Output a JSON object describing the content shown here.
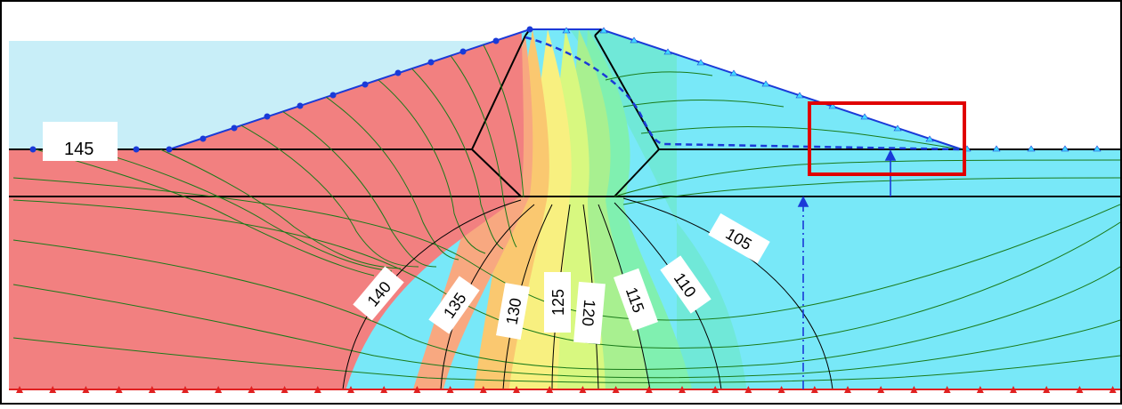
{
  "diagram": {
    "head_label_upstream": "145",
    "contour_labels": [
      {
        "text": "140",
        "angle": -50
      },
      {
        "text": "135",
        "angle": -55
      },
      {
        "text": "130",
        "angle": -80
      },
      {
        "text": "125",
        "angle": -90
      },
      {
        "text": "120",
        "angle": 95
      },
      {
        "text": "115",
        "angle": 70
      },
      {
        "text": "110",
        "angle": 55
      },
      {
        "text": "105",
        "angle": 30
      }
    ],
    "highlight_box": "toe drain region",
    "colors": {
      "upstream_water": "#c8eef8",
      "zone_145": "#f28080",
      "zone_135": "#f8a880",
      "zone_130": "#fac870",
      "zone_125": "#f8f080",
      "zone_120": "#d8f880",
      "zone_115": "#a8f090",
      "zone_110": "#80f0b0",
      "zone_105": "#70e8e0",
      "zone_downstream": "#78e8f8",
      "flow_lines": "#1a7a1a",
      "phreatic_line": "#1a3ad8",
      "boundary_markers": "#e02020",
      "highlight": "#e00000"
    }
  }
}
